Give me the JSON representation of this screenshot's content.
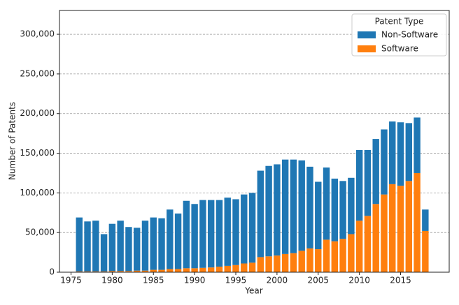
{
  "chart_data": {
    "type": "bar",
    "stacked": true,
    "x_label": "Year",
    "y_label": "Number of Patents",
    "x": [
      1976,
      1977,
      1978,
      1979,
      1980,
      1981,
      1982,
      1983,
      1984,
      1985,
      1986,
      1987,
      1988,
      1989,
      1990,
      1991,
      1992,
      1993,
      1994,
      1995,
      1996,
      1997,
      1998,
      1999,
      2000,
      2001,
      2002,
      2003,
      2004,
      2005,
      2006,
      2007,
      2008,
      2009,
      2010,
      2011,
      2012,
      2013,
      2014,
      2015,
      2016,
      2017,
      2018
    ],
    "series": [
      {
        "name": "Non-Software",
        "color": "#1f77b4",
        "values": [
          68000,
          63000,
          64000,
          47000,
          59500,
          63500,
          55500,
          54000,
          63000,
          66000,
          65000,
          75000,
          70000,
          85000,
          81000,
          85500,
          85000,
          84000,
          86000,
          83000,
          87000,
          88000,
          109000,
          114000,
          115000,
          119000,
          118000,
          114000,
          103000,
          85000,
          91000,
          79000,
          73000,
          71000,
          89000,
          83000,
          82000,
          82000,
          79000,
          80000,
          73000,
          70000,
          27000
        ]
      },
      {
        "name": "Software",
        "color": "#ff7f0e",
        "values": [
          1000,
          1000,
          1000,
          1000,
          1500,
          1500,
          1500,
          2000,
          2000,
          3000,
          3000,
          4000,
          4000,
          5000,
          5000,
          5500,
          6000,
          7000,
          8000,
          9000,
          11000,
          12000,
          19000,
          20000,
          21000,
          23000,
          24000,
          27000,
          30000,
          29000,
          41000,
          39000,
          42000,
          48000,
          65000,
          71000,
          86000,
          98000,
          111000,
          109000,
          115000,
          125000,
          52000
        ]
      }
    ],
    "legend": {
      "title": "Patent Type",
      "position": "upper right"
    },
    "xlim": [
      1973.6,
      2020.9
    ],
    "xticks": [
      1975,
      1980,
      1985,
      1990,
      1995,
      2000,
      2005,
      2010,
      2015
    ],
    "ylim": [
      0,
      330000
    ],
    "yticks": [
      0,
      {
        "value": 50000,
        "label": "50,000"
      },
      {
        "value": 100000,
        "label": "100,000"
      },
      {
        "value": 150000,
        "label": "150,000"
      },
      {
        "value": 200000,
        "label": "200,000"
      },
      {
        "value": 250000,
        "label": "250,000"
      },
      {
        "value": 300000,
        "label": "300,000"
      }
    ],
    "grid": true
  }
}
